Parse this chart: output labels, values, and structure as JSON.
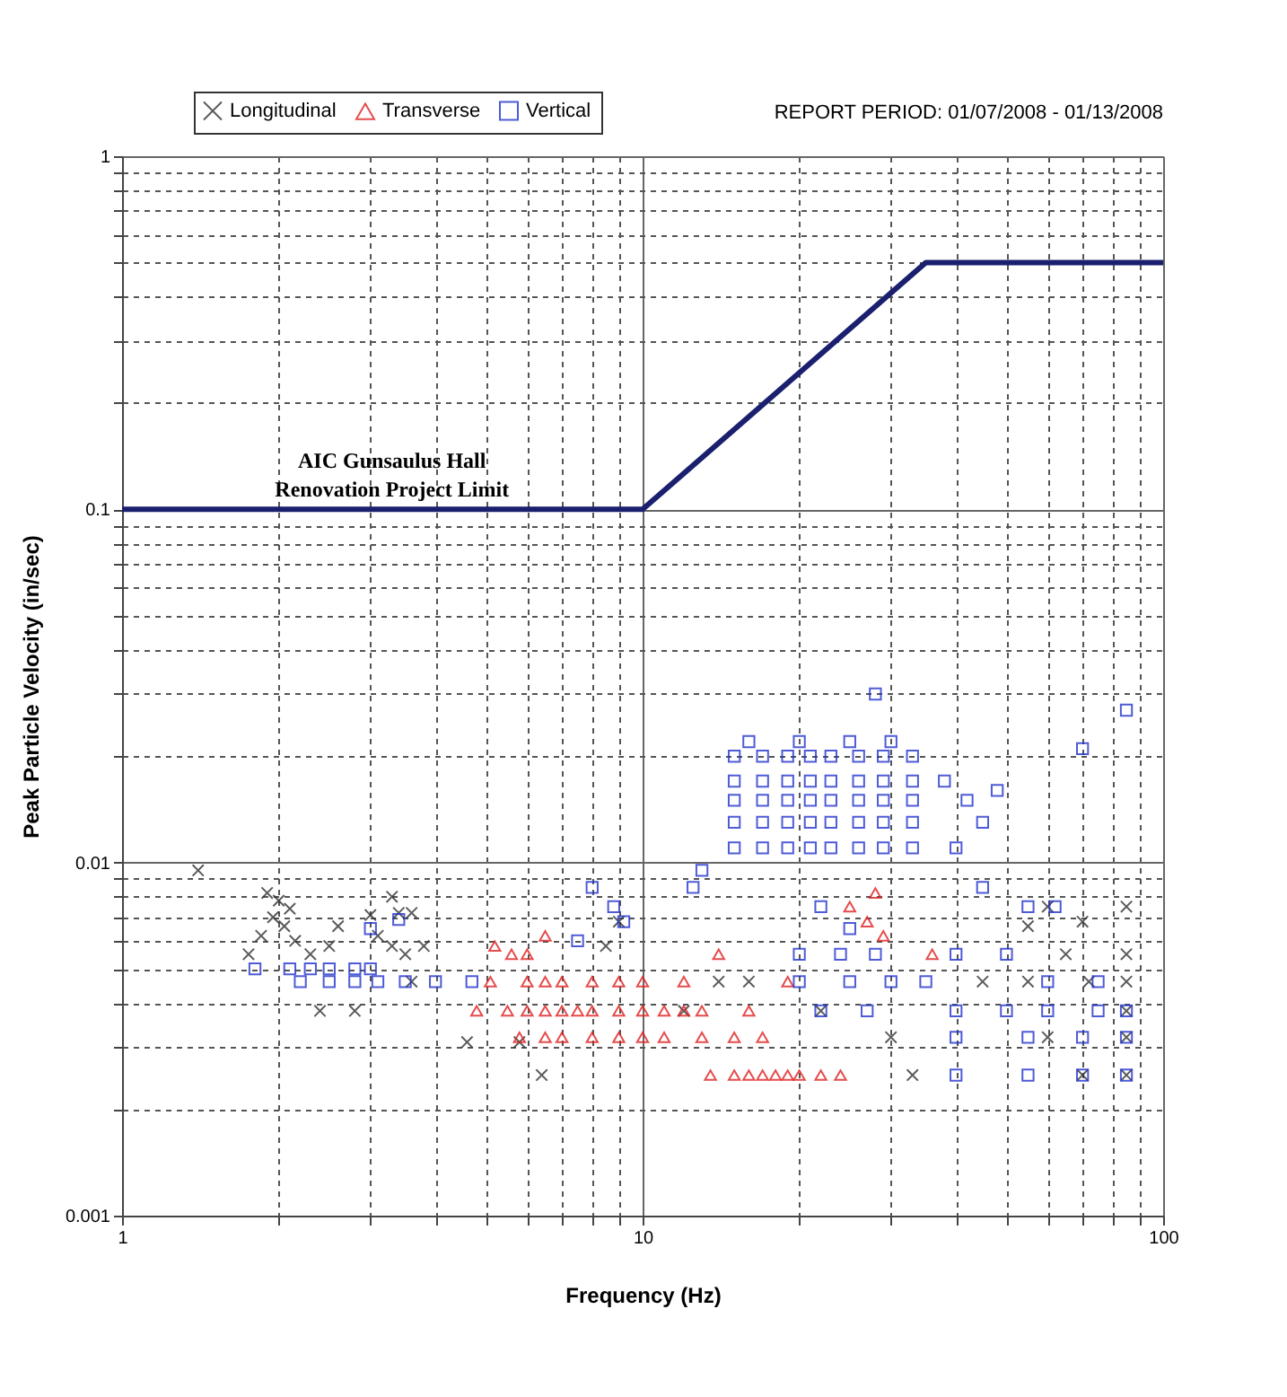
{
  "chart_data": {
    "type": "scatter",
    "xlabel": "Frequency (Hz)",
    "ylabel": "Peak Particle Velocity  (in/sec)",
    "annotations": [
      "REPORT PERIOD: 01/07/2008 - 01/13/2008",
      {
        "text": "AIC Gunsaulus Hall Renovation Project Limit",
        "x": 3.3,
        "y": 0.1
      }
    ],
    "log": "xy",
    "xlim": [
      1,
      100
    ],
    "ylim": [
      0.001,
      1
    ],
    "xticks": [
      1,
      {
        "value": 2,
        "label": null
      },
      {
        "value": 3,
        "label": null
      },
      {
        "value": 4,
        "label": null
      },
      {
        "value": 5,
        "label": null
      },
      {
        "value": 6,
        "label": null
      },
      {
        "value": 7,
        "label": null
      },
      {
        "value": 8,
        "label": null
      },
      {
        "value": 9,
        "label": null
      },
      10,
      {
        "value": 20,
        "label": null
      },
      {
        "value": 30,
        "label": null
      },
      {
        "value": 40,
        "label": null
      },
      {
        "value": 50,
        "label": null
      },
      {
        "value": 60,
        "label": null
      },
      {
        "value": 70,
        "label": null
      },
      {
        "value": 80,
        "label": null
      },
      {
        "value": 90,
        "label": null
      },
      100
    ],
    "yticks": [
      0.001,
      {
        "value": 0.002,
        "label": null
      },
      {
        "value": 0.003,
        "label": null
      },
      {
        "value": 0.004,
        "label": null
      },
      {
        "value": 0.005,
        "label": null
      },
      {
        "value": 0.006,
        "label": null
      },
      {
        "value": 0.007,
        "label": null
      },
      {
        "value": 0.008,
        "label": null
      },
      {
        "value": 0.009,
        "label": null
      },
      0.01,
      {
        "value": 0.02,
        "label": null
      },
      {
        "value": 0.03,
        "label": null
      },
      {
        "value": 0.04,
        "label": null
      },
      {
        "value": 0.05,
        "label": null
      },
      {
        "value": 0.06,
        "label": null
      },
      {
        "value": 0.07,
        "label": null
      },
      {
        "value": 0.08,
        "label": null
      },
      {
        "value": 0.09,
        "label": null
      },
      0.1,
      {
        "value": 0.2,
        "label": null
      },
      {
        "value": 0.3,
        "label": null
      },
      {
        "value": 0.4,
        "label": null
      },
      {
        "value": 0.5,
        "label": null
      },
      {
        "value": 0.6,
        "label": null
      },
      {
        "value": 0.7,
        "label": null
      },
      {
        "value": 0.8,
        "label": null
      },
      {
        "value": 0.9,
        "label": null
      },
      1
    ],
    "grid": true,
    "legend": "top left",
    "series": [
      {
        "name": "Longitudinal",
        "type": "scatter",
        "marker": "cross",
        "color": "#333333",
        "x": [
          1.4,
          1.9,
          2.0,
          2.1,
          1.95,
          2.05,
          1.85,
          2.15,
          1.75,
          2.3,
          2.5,
          2.6,
          3.0,
          3.1,
          3.3,
          3.4,
          3.6,
          3.3,
          3.5,
          3.8,
          2.4,
          2.8,
          3.6,
          4.6,
          5.8,
          6.4,
          8.5,
          9.0,
          12,
          14,
          16,
          22,
          30,
          33,
          45,
          55,
          55,
          60,
          65,
          70,
          72,
          85,
          85,
          85,
          85,
          85,
          85,
          70,
          60
        ],
        "values": [
          0.0095,
          0.0082,
          0.0078,
          0.0074,
          0.007,
          0.0066,
          0.0062,
          0.006,
          0.0055,
          0.0055,
          0.0058,
          0.0066,
          0.0071,
          0.0062,
          0.008,
          0.0072,
          0.0072,
          0.0058,
          0.0055,
          0.0058,
          0.0038,
          0.0038,
          0.0046,
          0.0031,
          0.0031,
          0.0025,
          0.0058,
          0.0068,
          0.0038,
          0.0046,
          0.0046,
          0.0038,
          0.0032,
          0.0025,
          0.0046,
          0.0066,
          0.0046,
          0.0075,
          0.0055,
          0.0068,
          0.0046,
          0.0075,
          0.0055,
          0.0046,
          0.0038,
          0.0032,
          0.0025,
          0.0025,
          0.0032
        ]
      },
      {
        "name": "Transverse",
        "type": "scatter",
        "marker": "triangle",
        "color": "#e02020",
        "x": [
          5.2,
          5.6,
          5.1,
          4.8,
          5.5,
          6.0,
          6.5,
          7.0,
          7.5,
          8.0,
          9,
          10,
          11,
          12,
          13,
          6,
          6.5,
          7,
          8,
          9,
          10,
          12,
          5.8,
          6.5,
          7,
          8,
          9,
          10,
          11,
          13,
          15,
          17,
          6,
          6.5,
          13.5,
          15,
          16,
          17,
          18,
          19,
          20,
          22,
          24,
          14,
          16,
          19,
          25,
          27,
          29,
          36,
          28
        ],
        "values": [
          0.0058,
          0.0055,
          0.0046,
          0.0038,
          0.0038,
          0.0038,
          0.0038,
          0.0038,
          0.0038,
          0.0038,
          0.0038,
          0.0038,
          0.0038,
          0.0038,
          0.0038,
          0.0046,
          0.0046,
          0.0046,
          0.0046,
          0.0046,
          0.0046,
          0.0046,
          0.0032,
          0.0032,
          0.0032,
          0.0032,
          0.0032,
          0.0032,
          0.0032,
          0.0032,
          0.0032,
          0.0032,
          0.0055,
          0.0062,
          0.0025,
          0.0025,
          0.0025,
          0.0025,
          0.0025,
          0.0025,
          0.0025,
          0.0025,
          0.0025,
          0.0055,
          0.0038,
          0.0046,
          0.0075,
          0.0068,
          0.0062,
          0.0055,
          0.0082
        ]
      },
      {
        "name": "Vertical",
        "type": "scatter",
        "marker": "square",
        "color": "#2233cc",
        "x": [
          1.8,
          2.1,
          2.3,
          2.5,
          2.8,
          3.0,
          2.2,
          2.5,
          2.8,
          3.1,
          3.5,
          4.0,
          3.4,
          3.0,
          4.7,
          8,
          8.8,
          9.2,
          7.5,
          13,
          12.5,
          15,
          15,
          15,
          15,
          15,
          17,
          17,
          17,
          17,
          17,
          19,
          19,
          19,
          19,
          19,
          21,
          21,
          21,
          21,
          21,
          23,
          23,
          23,
          23,
          23,
          26,
          26,
          26,
          26,
          26,
          29,
          29,
          29,
          29,
          29,
          33,
          33,
          33,
          33,
          33,
          16,
          20,
          25,
          30,
          28,
          38,
          42,
          45,
          40,
          48,
          70,
          85,
          45,
          55,
          62,
          40,
          50,
          60,
          75,
          35,
          40,
          50,
          60,
          75,
          85,
          40,
          55,
          70,
          85,
          40,
          55,
          70,
          85,
          22,
          25,
          20,
          24,
          28,
          20,
          25,
          30,
          22,
          27
        ],
        "values": [
          0.005,
          0.005,
          0.005,
          0.005,
          0.005,
          0.005,
          0.0046,
          0.0046,
          0.0046,
          0.0046,
          0.0046,
          0.0046,
          0.0069,
          0.0065,
          0.0046,
          0.0085,
          0.0075,
          0.0068,
          0.006,
          0.0095,
          0.0085,
          0.011,
          0.013,
          0.015,
          0.017,
          0.02,
          0.011,
          0.013,
          0.015,
          0.017,
          0.02,
          0.011,
          0.013,
          0.015,
          0.017,
          0.02,
          0.011,
          0.013,
          0.015,
          0.017,
          0.02,
          0.011,
          0.013,
          0.015,
          0.017,
          0.02,
          0.011,
          0.013,
          0.015,
          0.017,
          0.02,
          0.011,
          0.013,
          0.015,
          0.017,
          0.02,
          0.011,
          0.013,
          0.015,
          0.017,
          0.02,
          0.022,
          0.022,
          0.022,
          0.022,
          0.03,
          0.017,
          0.015,
          0.013,
          0.011,
          0.016,
          0.021,
          0.027,
          0.0085,
          0.0075,
          0.0075,
          0.0055,
          0.0055,
          0.0046,
          0.0046,
          0.0046,
          0.0038,
          0.0038,
          0.0038,
          0.0038,
          0.0038,
          0.0032,
          0.0032,
          0.0032,
          0.0032,
          0.0025,
          0.0025,
          0.0025,
          0.0025,
          0.0075,
          0.0065,
          0.0055,
          0.0055,
          0.0055,
          0.0046,
          0.0046,
          0.0046,
          0.0038,
          0.0038
        ]
      },
      {
        "type": "line",
        "color": "#1a1f6e",
        "x": [
          1,
          10,
          35,
          100
        ],
        "values": [
          0.1,
          0.1,
          0.5,
          0.5
        ]
      }
    ]
  }
}
